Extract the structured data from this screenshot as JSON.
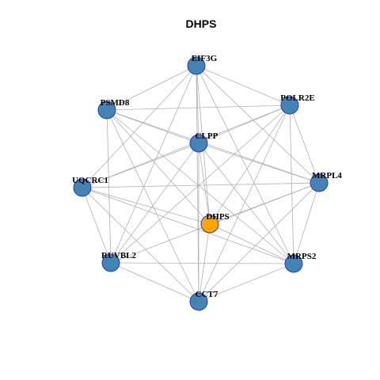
{
  "title": "DHPS",
  "nodes": [
    {
      "label": "EIF3G",
      "color": "#4682b4"
    },
    {
      "label": "POLR2E",
      "color": "#4682b4"
    },
    {
      "label": "PSMD8",
      "color": "#4682b4"
    },
    {
      "label": "CLPP",
      "color": "#4682b4"
    },
    {
      "label": "MRPL4",
      "color": "#4682b4"
    },
    {
      "label": "UQCRC1",
      "color": "#4682b4"
    },
    {
      "label": "DHPS",
      "color": "#ffa500"
    },
    {
      "label": "RUVBL2",
      "color": "#4682b4"
    },
    {
      "label": "MRPS2",
      "color": "#4682b4"
    },
    {
      "label": "CCT7",
      "color": "#4682b4"
    }
  ],
  "edges": [
    [
      0,
      1
    ],
    [
      0,
      2
    ],
    [
      0,
      3
    ],
    [
      0,
      4
    ],
    [
      0,
      5
    ],
    [
      0,
      6
    ],
    [
      0,
      7
    ],
    [
      0,
      8
    ],
    [
      0,
      9
    ],
    [
      2,
      1
    ],
    [
      2,
      3
    ],
    [
      2,
      4
    ],
    [
      2,
      6
    ],
    [
      2,
      7
    ],
    [
      2,
      8
    ],
    [
      2,
      9
    ],
    [
      1,
      3
    ],
    [
      1,
      4
    ],
    [
      1,
      8
    ],
    [
      1,
      6
    ],
    [
      1,
      7
    ],
    [
      1,
      9
    ],
    [
      1,
      5
    ],
    [
      3,
      4
    ],
    [
      3,
      5
    ],
    [
      3,
      6
    ],
    [
      3,
      7
    ],
    [
      3,
      8
    ],
    [
      3,
      9
    ],
    [
      4,
      5
    ],
    [
      4,
      6
    ],
    [
      4,
      7
    ],
    [
      4,
      8
    ],
    [
      4,
      9
    ],
    [
      5,
      7
    ],
    [
      5,
      8
    ],
    [
      5,
      9
    ],
    [
      5,
      6
    ],
    [
      7,
      8
    ],
    [
      7,
      9
    ],
    [
      6,
      8
    ],
    [
      6,
      9
    ],
    [
      8,
      9
    ]
  ]
}
